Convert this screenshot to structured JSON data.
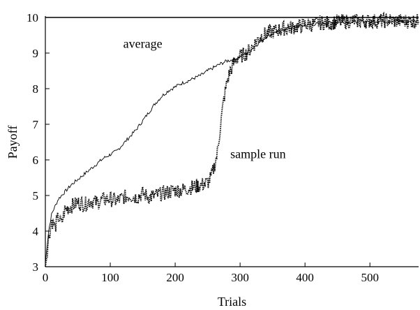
{
  "chart_data": {
    "type": "line",
    "title": "",
    "xlabel": "Trials",
    "ylabel": "Payoff",
    "xlim": [
      0,
      575
    ],
    "ylim": [
      3,
      10
    ],
    "x_ticks": [
      0,
      100,
      200,
      300,
      400,
      500
    ],
    "y_ticks": [
      3,
      4,
      5,
      6,
      7,
      8,
      9,
      10
    ],
    "grid": false,
    "legend": "none",
    "reference_line": {
      "y": 10
    },
    "annotations": [
      {
        "text": "average",
        "x": 120,
        "y": 9.15
      },
      {
        "text": "sample run",
        "x": 285,
        "y": 6.05
      }
    ],
    "series": [
      {
        "name": "average",
        "style": "solid",
        "x": [
          0,
          5,
          10,
          20,
          30,
          40,
          50,
          60,
          70,
          80,
          90,
          100,
          110,
          120,
          130,
          140,
          150,
          160,
          170,
          180,
          190,
          200,
          210,
          220,
          230,
          240,
          250,
          260,
          270,
          280,
          290,
          300,
          310,
          320,
          330,
          340,
          350,
          360,
          370,
          380,
          390,
          400,
          410,
          420,
          430,
          440,
          450,
          460,
          470,
          480,
          490,
          500,
          510,
          520,
          530,
          540,
          550,
          560,
          575
        ],
        "y": [
          3.1,
          4.0,
          4.5,
          4.9,
          5.1,
          5.3,
          5.45,
          5.6,
          5.75,
          5.9,
          6.05,
          6.15,
          6.25,
          6.45,
          6.65,
          6.85,
          7.1,
          7.35,
          7.6,
          7.8,
          7.95,
          8.05,
          8.15,
          8.22,
          8.3,
          8.38,
          8.5,
          8.6,
          8.7,
          8.78,
          8.82,
          8.9,
          9.0,
          9.15,
          9.3,
          9.45,
          9.55,
          9.62,
          9.68,
          9.72,
          9.75,
          9.78,
          9.8,
          9.82,
          9.84,
          9.85,
          9.86,
          9.87,
          9.87,
          9.88,
          9.89,
          9.9,
          9.9,
          9.9,
          9.9,
          9.9,
          9.9,
          9.9,
          9.9
        ]
      },
      {
        "name": "sample run",
        "style": "dotted",
        "x": [
          0,
          5,
          10,
          15,
          20,
          25,
          30,
          40,
          50,
          60,
          70,
          80,
          90,
          100,
          110,
          120,
          130,
          140,
          150,
          160,
          170,
          180,
          190,
          200,
          210,
          220,
          230,
          240,
          250,
          255,
          260,
          265,
          270,
          275,
          280,
          285,
          290,
          295,
          300,
          310,
          320,
          330,
          340,
          350,
          360,
          370,
          380,
          390,
          400,
          410,
          420,
          430,
          440,
          450,
          460,
          470,
          480,
          490,
          500,
          510,
          520,
          530,
          540,
          550,
          560,
          575
        ],
        "y": [
          3.0,
          3.8,
          4.3,
          4.1,
          4.4,
          4.2,
          4.6,
          4.7,
          4.8,
          4.75,
          4.85,
          4.8,
          4.9,
          4.9,
          4.85,
          4.95,
          5.0,
          4.95,
          5.05,
          4.95,
          5.0,
          5.05,
          5.1,
          5.15,
          5.15,
          5.2,
          5.25,
          5.3,
          5.35,
          5.5,
          5.8,
          6.2,
          7.0,
          7.7,
          8.2,
          8.5,
          8.7,
          8.85,
          8.9,
          9.0,
          9.2,
          9.45,
          9.55,
          9.6,
          9.65,
          9.7,
          9.72,
          9.75,
          9.8,
          9.8,
          9.85,
          9.85,
          9.85,
          9.88,
          9.88,
          9.9,
          9.9,
          9.9,
          9.9,
          9.9,
          9.9,
          9.92,
          9.9,
          9.9,
          9.9,
          9.9
        ]
      }
    ]
  }
}
